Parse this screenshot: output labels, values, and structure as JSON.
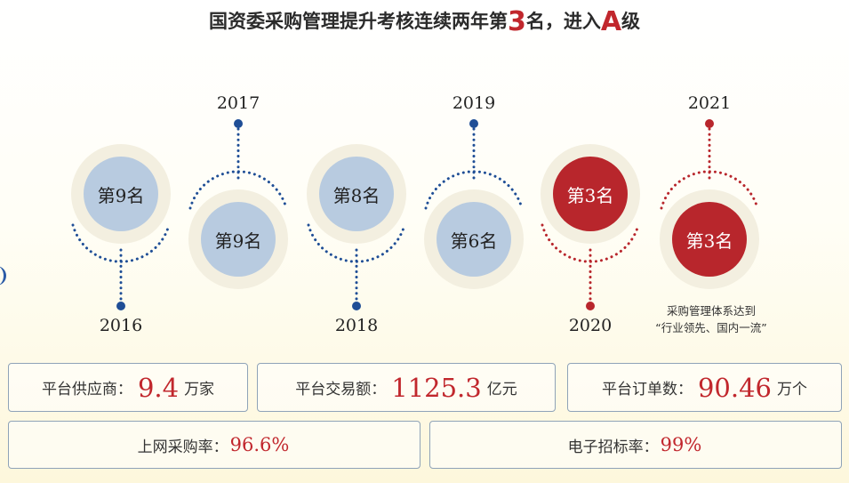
{
  "title": {
    "before": "国资委采购管理提升考核连续两年第",
    "rank_num": "3",
    "middle": "名，进入",
    "grade": "A",
    "after": "级"
  },
  "timeline": [
    {
      "year": "2016",
      "rank": "第9名",
      "color": "blue"
    },
    {
      "year": "2017",
      "rank": "第9名",
      "color": "blue"
    },
    {
      "year": "2018",
      "rank": "第8名",
      "color": "blue"
    },
    {
      "year": "2019",
      "rank": "第6名",
      "color": "blue"
    },
    {
      "year": "2020",
      "rank": "第3名",
      "color": "red"
    },
    {
      "year": "2021",
      "rank": "第3名",
      "color": "red"
    }
  ],
  "note": {
    "line1": "采购管理体系达到",
    "line2": "“行业领先、国内一流”"
  },
  "stats_row1": [
    {
      "label": "平台供应商：",
      "value": "9.4",
      "unit": "万家"
    },
    {
      "label": "平台交易额：",
      "value": "1125.3",
      "unit": "亿元"
    },
    {
      "label": "平台订单数：",
      "value": "90.46",
      "unit": "万个"
    }
  ],
  "stats_row2": [
    {
      "label": "上网采购率：",
      "value": "96.6%"
    },
    {
      "label": "电子招标率：",
      "value": "99%"
    }
  ],
  "colors": {
    "blue_dot": "#1f4e96",
    "blue_circle": "#b8cbe0",
    "red": "#b8262c",
    "text_red": "#c1272d"
  }
}
